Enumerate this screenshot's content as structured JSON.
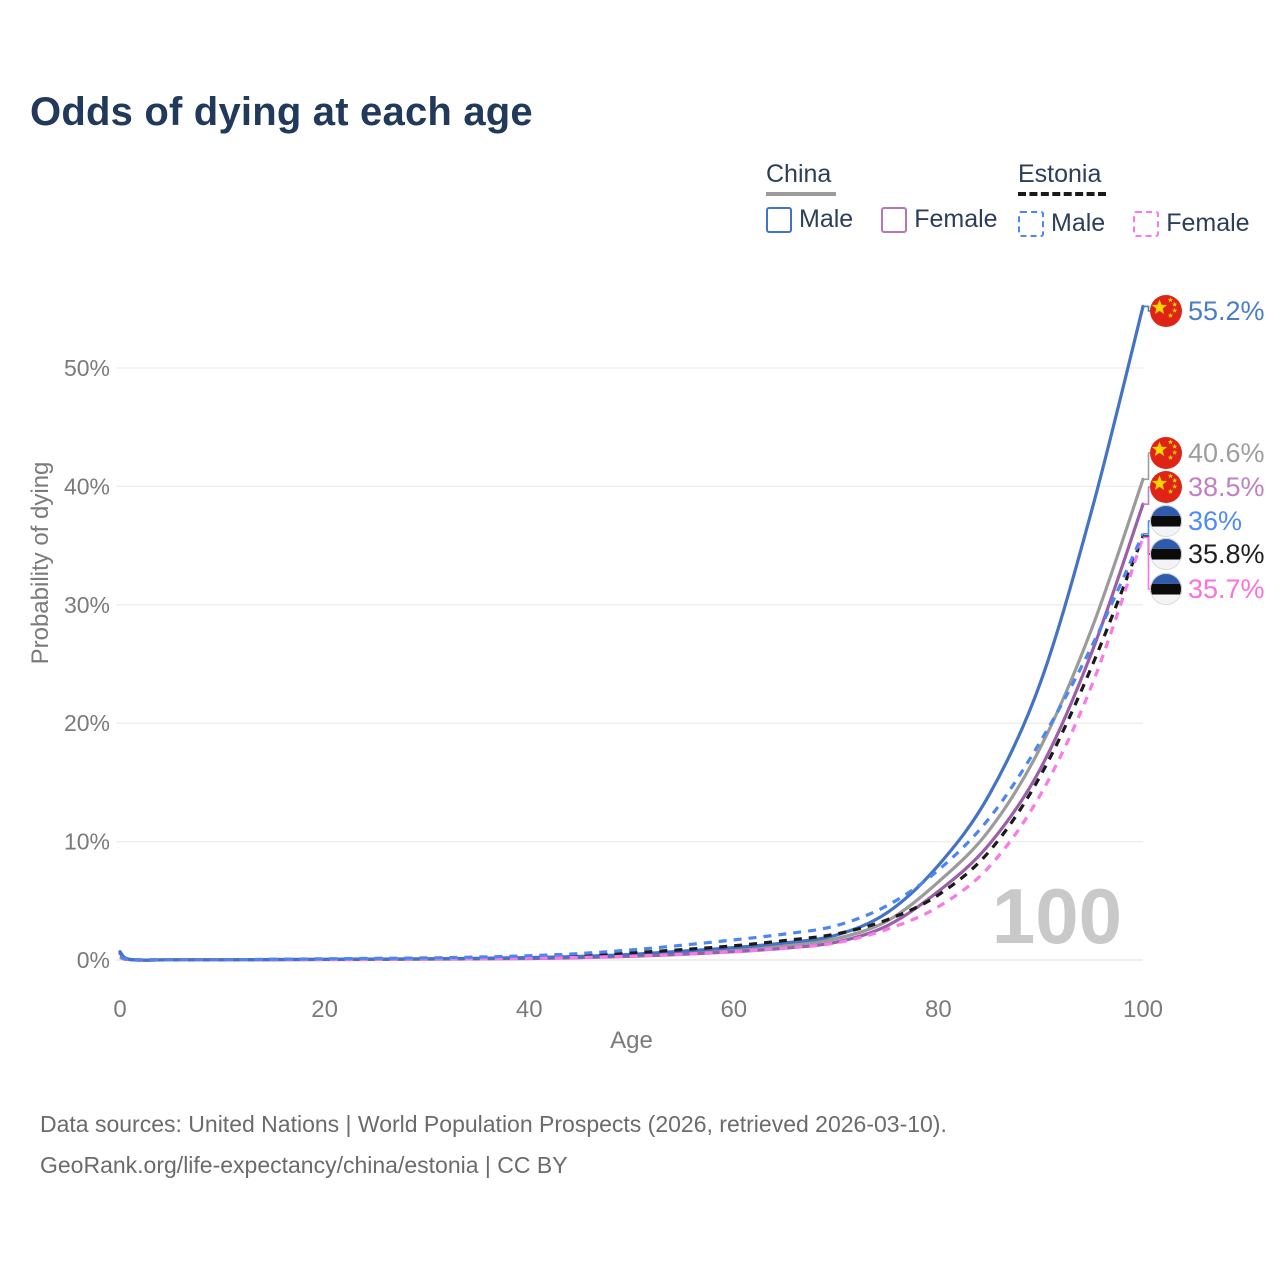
{
  "header": {
    "title": "Odds of dying at each age"
  },
  "legend": {
    "china": {
      "label": "China",
      "male_label": "Male",
      "female_label": "Female"
    },
    "estonia": {
      "label": "Estonia",
      "male_label": "Male",
      "female_label": "Female"
    }
  },
  "watermark_age": "100",
  "footer": {
    "line1": "Data sources: United Nations | World Population Prospects (2026, retrieved 2026-03-10).",
    "line2": "GeoRank.org/life-expectancy/china/estonia | CC BY"
  },
  "colors": {
    "title_navy": "#21395b",
    "axis_gray": "#7b7b7b",
    "grid_gray": "#ededed",
    "watermark_gray": "#c9c9c9",
    "china_flag_red": "#df2417",
    "china_flag_yellow": "#ffd500",
    "estonia_flag_blue": "#2e5bad",
    "estonia_flag_black": "#0b0b0b",
    "estonia_flag_white": "#f3f4f6"
  },
  "chart_data": {
    "type": "line",
    "title": "Odds of dying at each age",
    "xlabel": "Age",
    "ylabel": "Probability of dying",
    "xlim": [
      0,
      100
    ],
    "ylim": [
      0,
      57
    ],
    "x_ticks": [
      0,
      20,
      40,
      60,
      80,
      100
    ],
    "y_ticks": [
      0,
      10,
      20,
      30,
      40,
      50
    ],
    "y_tick_suffix": "%",
    "grid": "horizontal",
    "legend_position": "top-right",
    "hover_age_watermark": "100",
    "x": [
      0,
      1,
      5,
      10,
      15,
      20,
      25,
      30,
      35,
      40,
      45,
      50,
      55,
      60,
      65,
      70,
      75,
      80,
      85,
      90,
      95,
      100
    ],
    "series": [
      {
        "name": "China male",
        "country": "China",
        "sex": "Male",
        "flag": "china",
        "style": "solid",
        "color": "#4472c4",
        "label_color": "#4a7dc9",
        "end_label": "55.2%",
        "end_value": 55.2,
        "values": [
          0.7,
          0.04,
          0.02,
          0.02,
          0.04,
          0.06,
          0.08,
          0.1,
          0.14,
          0.2,
          0.3,
          0.48,
          0.75,
          1.05,
          1.45,
          2.1,
          4.0,
          8.0,
          14.0,
          23.5,
          38.0,
          55.2
        ]
      },
      {
        "name": "China both sexes",
        "country": "China",
        "sex": "Both",
        "flag": "china",
        "style": "solid",
        "color": "#9b9b9b",
        "label_color": "#9e9e9e",
        "end_label": "40.6%",
        "end_value": 40.6,
        "values": [
          0.6,
          0.04,
          0.02,
          0.02,
          0.03,
          0.05,
          0.07,
          0.09,
          0.12,
          0.17,
          0.26,
          0.4,
          0.62,
          0.88,
          1.25,
          1.8,
          3.3,
          6.6,
          11.0,
          18.0,
          28.0,
          40.6
        ]
      },
      {
        "name": "China female",
        "country": "China",
        "sex": "Female",
        "flag": "china",
        "style": "solid",
        "color": "#9a5fa6",
        "label_color": "#c17fc4",
        "end_label": "38.5%",
        "end_value": 38.5,
        "values": [
          0.55,
          0.03,
          0.015,
          0.015,
          0.025,
          0.04,
          0.05,
          0.07,
          0.09,
          0.13,
          0.2,
          0.31,
          0.48,
          0.7,
          1.0,
          1.5,
          2.9,
          5.8,
          9.8,
          16.2,
          26.0,
          38.5
        ]
      },
      {
        "name": "Estonia male",
        "country": "Estonia",
        "sex": "Male",
        "flag": "estonia",
        "style": "dashed",
        "color": "#4c86f2",
        "label_color": "#4e8bf7",
        "end_label": "36%",
        "end_value": 36.0,
        "values": [
          0.3,
          0.03,
          0.02,
          0.02,
          0.06,
          0.1,
          0.14,
          0.18,
          0.25,
          0.36,
          0.55,
          0.85,
          1.25,
          1.7,
          2.2,
          2.9,
          4.6,
          7.6,
          12.0,
          18.5,
          26.5,
          36.0
        ]
      },
      {
        "name": "Estonia both sexes",
        "country": "Estonia",
        "sex": "Both",
        "flag": "estonia",
        "style": "dashed",
        "color": "#1a1a1a",
        "label_color": "#1f1f1f",
        "end_label": "35.8%",
        "end_value": 35.8,
        "values": [
          0.25,
          0.025,
          0.015,
          0.015,
          0.045,
          0.07,
          0.1,
          0.13,
          0.18,
          0.26,
          0.4,
          0.6,
          0.88,
          1.2,
          1.65,
          2.2,
          3.4,
          5.5,
          9.2,
          15.6,
          24.8,
          35.8
        ]
      },
      {
        "name": "Estonia female",
        "country": "Estonia",
        "sex": "Female",
        "flag": "estonia",
        "style": "dashed",
        "color": "#f97ae5",
        "label_color": "#fb70e0",
        "end_label": "35.7%",
        "end_value": 35.7,
        "values": [
          0.2,
          0.02,
          0.01,
          0.01,
          0.025,
          0.04,
          0.05,
          0.07,
          0.1,
          0.15,
          0.22,
          0.33,
          0.48,
          0.7,
          1.0,
          1.45,
          2.6,
          4.5,
          7.9,
          14.0,
          23.2,
          35.7
        ]
      }
    ]
  }
}
